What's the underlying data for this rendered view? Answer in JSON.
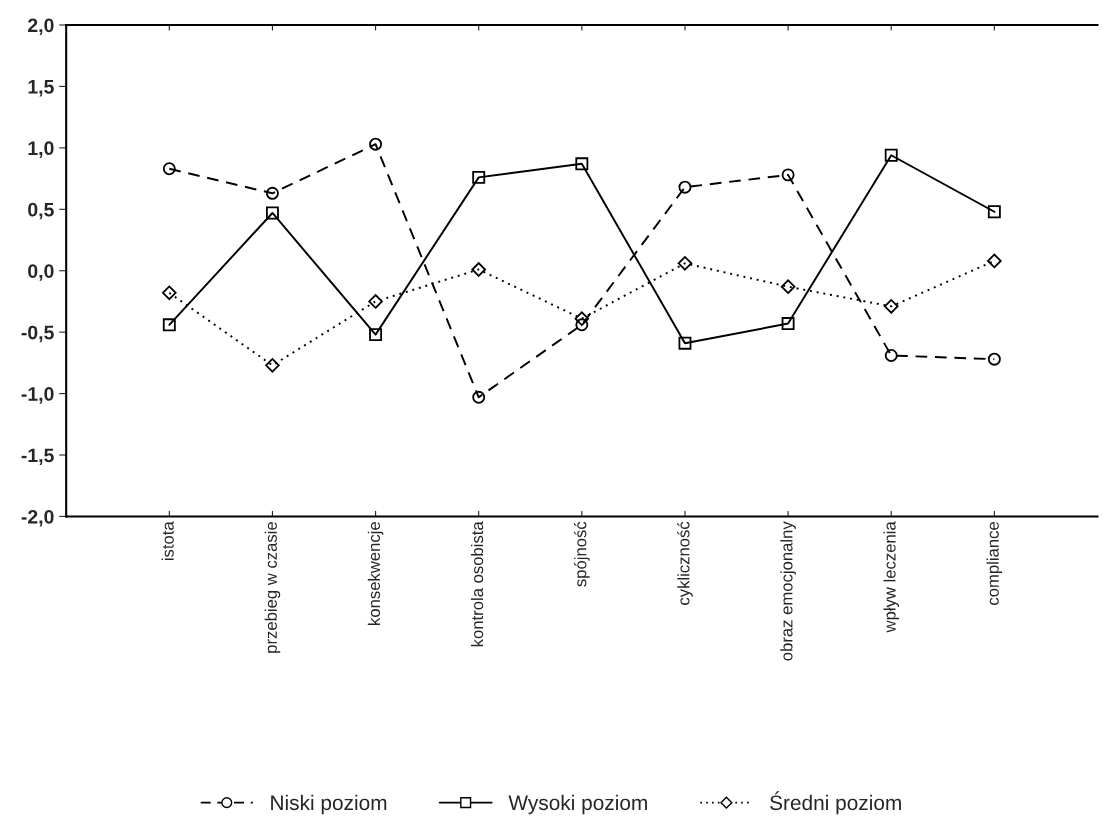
{
  "chart_data": {
    "type": "line",
    "categories": [
      "istota",
      "przebieg w czasie",
      "konsekwencje",
      "kontrola osobista",
      "spójność",
      "cykliczność",
      "obraz emocjonalny",
      "wpływ leczenia",
      "compliance"
    ],
    "series": [
      {
        "name": "Niski poziom",
        "color": "#000000",
        "marker": "circle",
        "line_style": "dashed",
        "values": [
          0.83,
          0.63,
          1.03,
          -1.03,
          -0.44,
          0.68,
          0.78,
          -0.69,
          -0.72
        ]
      },
      {
        "name": "Wysoki poziom",
        "color": "#000000",
        "marker": "square",
        "line_style": "solid",
        "values": [
          -0.44,
          0.47,
          -0.52,
          0.76,
          0.87,
          -0.59,
          -0.43,
          0.94,
          0.48
        ]
      },
      {
        "name": "Średni poziom",
        "color": "#000000",
        "marker": "diamond",
        "line_style": "dotted",
        "values": [
          -0.18,
          -0.77,
          -0.25,
          0.01,
          -0.39,
          0.06,
          -0.13,
          -0.29,
          0.08
        ]
      }
    ],
    "ylim": [
      -2.0,
      2.0
    ],
    "yticks": [
      {
        "value": -2.0,
        "label": "-2,0"
      },
      {
        "value": -1.5,
        "label": "-1,5"
      },
      {
        "value": -1.0,
        "label": "-1,0"
      },
      {
        "value": -0.5,
        "label": "-0,5"
      },
      {
        "value": 0.0,
        "label": "0,0"
      },
      {
        "value": 0.5,
        "label": "0,5"
      },
      {
        "value": 1.0,
        "label": "1,0"
      },
      {
        "value": 1.5,
        "label": "1,5"
      },
      {
        "value": 2.0,
        "label": "2,0"
      }
    ],
    "grid": false,
    "legend": "bottom"
  }
}
